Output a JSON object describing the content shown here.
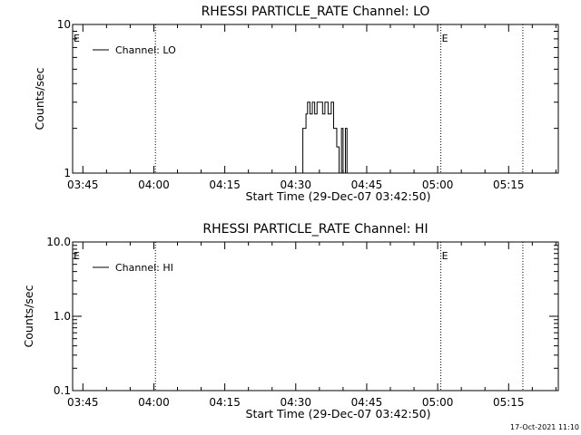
{
  "colors": {
    "background": "#ffffff",
    "foreground": "#000000"
  },
  "footer": {
    "timestamp": "17-Oct-2021 11:10"
  },
  "chart_data": [
    {
      "type": "line",
      "title": "RHESSI PARTICLE_RATE Channel: LO",
      "xlabel": "Start Time (29-Dec-07 03:42:50)",
      "ylabel": "Counts/sec",
      "yscale": "log",
      "ylim": [
        1,
        10
      ],
      "yticks": [
        1,
        10
      ],
      "ytick_labels": [
        "1",
        "10"
      ],
      "xlim": [
        "03:42:50",
        "05:25:30"
      ],
      "xticks": [
        "03:45",
        "04:00",
        "04:15",
        "04:30",
        "04:45",
        "05:00",
        "05:15"
      ],
      "legend": {
        "position": "top-left",
        "entries": [
          "Channel: LO"
        ]
      },
      "vlines": [
        "04:00:20",
        "05:00:40",
        "05:18:00"
      ],
      "event_markers": [
        {
          "label": "E",
          "x": "03:42:50"
        },
        {
          "label": "E",
          "x": "05:00:40"
        }
      ],
      "series": [
        {
          "name": "Channel: LO",
          "points": [
            [
              "04:31:20",
              1
            ],
            [
              "04:31:30",
              2
            ],
            [
              "04:32:00",
              2
            ],
            [
              "04:32:10",
              2.5
            ],
            [
              "04:32:30",
              3
            ],
            [
              "04:32:50",
              3
            ],
            [
              "04:33:00",
              2.5
            ],
            [
              "04:33:20",
              2.5
            ],
            [
              "04:33:30",
              3
            ],
            [
              "04:33:50",
              3
            ],
            [
              "04:34:00",
              2.5
            ],
            [
              "04:34:20",
              2.5
            ],
            [
              "04:34:30",
              3
            ],
            [
              "04:35:30",
              3
            ],
            [
              "04:35:40",
              2.5
            ],
            [
              "04:36:00",
              2.5
            ],
            [
              "04:36:10",
              3
            ],
            [
              "04:36:30",
              3
            ],
            [
              "04:36:50",
              2.5
            ],
            [
              "04:37:20",
              2.5
            ],
            [
              "04:37:30",
              3
            ],
            [
              "04:37:50",
              3
            ],
            [
              "04:38:00",
              2
            ],
            [
              "04:38:30",
              2
            ],
            [
              "04:38:40",
              1.5
            ],
            [
              "04:39:00",
              1.5
            ],
            [
              "04:39:10",
              1
            ],
            [
              "04:39:30",
              1
            ],
            [
              "04:39:40",
              2
            ],
            [
              "04:39:50",
              2
            ],
            [
              "04:40:00",
              1
            ],
            [
              "04:40:20",
              1
            ],
            [
              "04:40:30",
              2
            ],
            [
              "04:40:40",
              2
            ],
            [
              "04:40:50",
              1
            ]
          ]
        }
      ]
    },
    {
      "type": "line",
      "title": "RHESSI PARTICLE_RATE Channel: HI",
      "xlabel": "Start Time (29-Dec-07 03:42:50)",
      "ylabel": "Counts/sec",
      "yscale": "log",
      "ylim": [
        0.1,
        10
      ],
      "yticks": [
        0.1,
        1,
        10
      ],
      "ytick_labels": [
        "0.1",
        "1.0",
        "10.0"
      ],
      "xlim": [
        "03:42:50",
        "05:25:30"
      ],
      "xticks": [
        "03:45",
        "04:00",
        "04:15",
        "04:30",
        "04:45",
        "05:00",
        "05:15"
      ],
      "legend": {
        "position": "top-left",
        "entries": [
          "Channel: HI"
        ]
      },
      "vlines": [
        "04:00:20",
        "05:00:40",
        "05:18:00"
      ],
      "event_markers": [
        {
          "label": "E",
          "x": "03:42:50"
        },
        {
          "label": "E",
          "x": "05:00:40"
        }
      ],
      "series": [
        {
          "name": "Channel: HI",
          "points": []
        }
      ]
    }
  ]
}
